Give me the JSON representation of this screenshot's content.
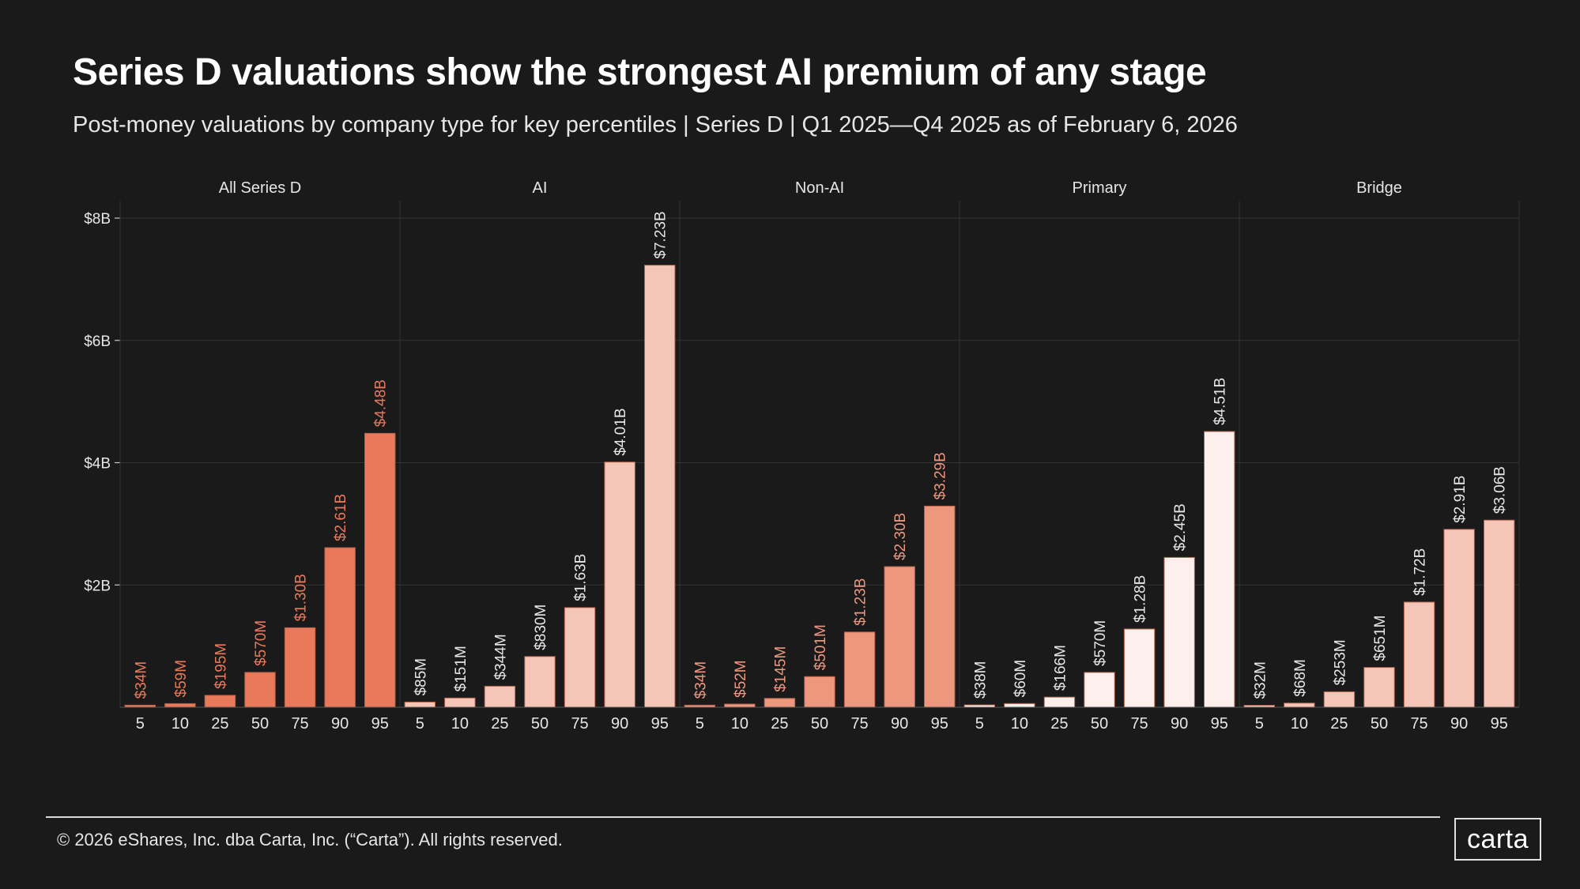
{
  "header": {
    "title": "Series D valuations show the strongest AI premium of any stage",
    "subtitle": "Post-money valuations by company type for key percentiles  |  Series D  | Q1 2025—Q4 2025 as of February 6, 2026"
  },
  "footer": {
    "copyright": "© 2026 eShares, Inc. dba Carta, Inc. (“Carta”). All rights reserved.",
    "logo": "carta"
  },
  "chart_data": {
    "type": "bar",
    "categories": [
      "5",
      "10",
      "25",
      "50",
      "75",
      "90",
      "95"
    ],
    "xlabel": "",
    "ylabel": "",
    "unit": "billions USD",
    "ylim": [
      0,
      8
    ],
    "yticks": [
      2,
      4,
      6,
      8
    ],
    "ytick_labels": [
      "$2B",
      "$4B",
      "$6B",
      "$8B"
    ],
    "grid": true,
    "series": [
      {
        "name": "All Series D",
        "color": "#e8795a",
        "label_color": "#e8795a",
        "values": [
          0.034,
          0.059,
          0.195,
          0.57,
          1.3,
          2.61,
          4.48
        ],
        "labels": [
          "$34M",
          "$59M",
          "$195M",
          "$570M",
          "$1.30B",
          "$2.61B",
          "$4.48B"
        ]
      },
      {
        "name": "AI",
        "color": "#f5c6b8",
        "label_color": "#e6e6e6",
        "values": [
          0.085,
          0.151,
          0.344,
          0.83,
          1.63,
          4.01,
          7.23
        ],
        "labels": [
          "$85M",
          "$151M",
          "$344M",
          "$830M",
          "$1.63B",
          "$4.01B",
          "$7.23B"
        ]
      },
      {
        "name": "Non-AI",
        "color": "#ec977e",
        "label_color": "#ec977e",
        "values": [
          0.034,
          0.052,
          0.145,
          0.501,
          1.23,
          2.3,
          3.29
        ],
        "labels": [
          "$34M",
          "$52M",
          "$145M",
          "$501M",
          "$1.23B",
          "$2.30B",
          "$3.29B"
        ]
      },
      {
        "name": "Primary",
        "color": "#fdf0ec",
        "label_color": "#e6e6e6",
        "values": [
          0.038,
          0.06,
          0.166,
          0.57,
          1.28,
          2.45,
          4.51
        ],
        "labels": [
          "$38M",
          "$60M",
          "$166M",
          "$570M",
          "$1.28B",
          "$2.45B",
          "$4.51B"
        ]
      },
      {
        "name": "Bridge",
        "color": "#f5c6b8",
        "label_color": "#e6e6e6",
        "values": [
          0.032,
          0.068,
          0.253,
          0.651,
          1.72,
          2.91,
          3.06
        ],
        "labels": [
          "$32M",
          "$68M",
          "$253M",
          "$651M",
          "$1.72B",
          "$2.91B",
          "$3.06B"
        ]
      }
    ]
  }
}
